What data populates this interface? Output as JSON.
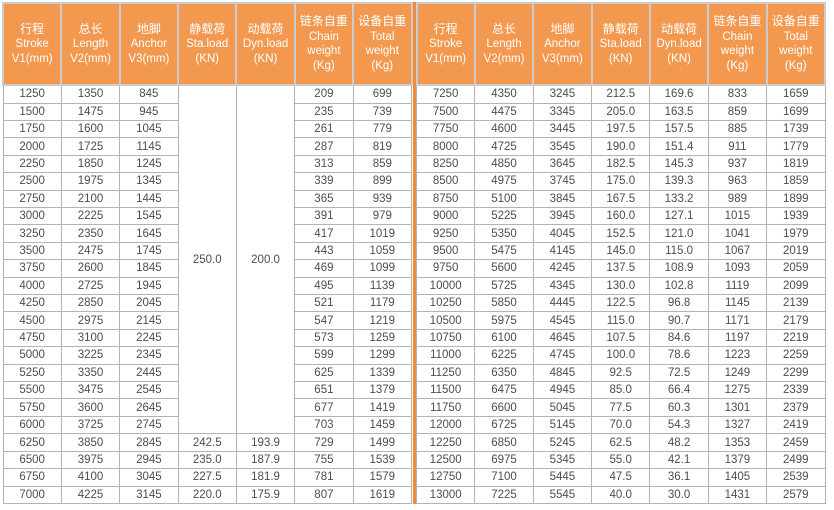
{
  "colors": {
    "header_bg": "#F2984F",
    "header_text": "#FFFFFF",
    "header_border": "#CCCCCC",
    "cell_border": "#B3B3B3",
    "cell_text": "#4D4D4D",
    "divider": "#EF8C3C",
    "page_bg": "#FFFFFF"
  },
  "columns": [
    {
      "id": "stroke",
      "lines": [
        "行程",
        "Stroke",
        "V1(mm)"
      ]
    },
    {
      "id": "length",
      "lines": [
        "总长",
        "Length",
        "V2(mm)"
      ]
    },
    {
      "id": "anchor",
      "lines": [
        "地脚",
        "Anchor",
        "V3(mm)"
      ]
    },
    {
      "id": "sta-load",
      "lines": [
        "静载荷",
        "Sta.load",
        "(KN)"
      ]
    },
    {
      "id": "dyn-load",
      "lines": [
        "动载荷",
        "Dyn.load",
        "(KN)"
      ]
    },
    {
      "id": "chain-weight",
      "lines": [
        "链条自重",
        "Chain",
        "weight",
        "(Kg)"
      ]
    },
    {
      "id": "total-weight",
      "lines": [
        "设备自重",
        "Total",
        "weight",
        "(Kg)"
      ]
    }
  ],
  "left": {
    "merged_sta_load": "250.0",
    "merged_dyn_load": "200.0",
    "merged_row_span": 20,
    "rows": [
      [
        "1250",
        "1350",
        "845",
        null,
        null,
        "209",
        "699"
      ],
      [
        "1500",
        "1475",
        "945",
        null,
        null,
        "235",
        "739"
      ],
      [
        "1750",
        "1600",
        "1045",
        null,
        null,
        "261",
        "779"
      ],
      [
        "2000",
        "1725",
        "1145",
        null,
        null,
        "287",
        "819"
      ],
      [
        "2250",
        "1850",
        "1245",
        null,
        null,
        "313",
        "859"
      ],
      [
        "2500",
        "1975",
        "1345",
        null,
        null,
        "339",
        "899"
      ],
      [
        "2750",
        "2100",
        "1445",
        null,
        null,
        "365",
        "939"
      ],
      [
        "3000",
        "2225",
        "1545",
        null,
        null,
        "391",
        "979"
      ],
      [
        "3250",
        "2350",
        "1645",
        null,
        null,
        "417",
        "1019"
      ],
      [
        "3500",
        "2475",
        "1745",
        null,
        null,
        "443",
        "1059"
      ],
      [
        "3750",
        "2600",
        "1845",
        null,
        null,
        "469",
        "1099"
      ],
      [
        "4000",
        "2725",
        "1945",
        null,
        null,
        "495",
        "1139"
      ],
      [
        "4250",
        "2850",
        "2045",
        null,
        null,
        "521",
        "1179"
      ],
      [
        "4500",
        "2975",
        "2145",
        null,
        null,
        "547",
        "1219"
      ],
      [
        "4750",
        "3100",
        "2245",
        null,
        null,
        "573",
        "1259"
      ],
      [
        "5000",
        "3225",
        "2345",
        null,
        null,
        "599",
        "1299"
      ],
      [
        "5250",
        "3350",
        "2445",
        null,
        null,
        "625",
        "1339"
      ],
      [
        "5500",
        "3475",
        "2545",
        null,
        null,
        "651",
        "1379"
      ],
      [
        "5750",
        "3600",
        "2645",
        null,
        null,
        "677",
        "1419"
      ],
      [
        "6000",
        "3725",
        "2745",
        null,
        null,
        "703",
        "1459"
      ],
      [
        "6250",
        "3850",
        "2845",
        "242.5",
        "193.9",
        "729",
        "1499"
      ],
      [
        "6500",
        "3975",
        "2945",
        "235.0",
        "187.9",
        "755",
        "1539"
      ],
      [
        "6750",
        "4100",
        "3045",
        "227.5",
        "181.9",
        "781",
        "1579"
      ],
      [
        "7000",
        "4225",
        "3145",
        "220.0",
        "175.9",
        "807",
        "1619"
      ]
    ]
  },
  "right": {
    "rows": [
      [
        "7250",
        "4350",
        "3245",
        "212.5",
        "169.6",
        "833",
        "1659"
      ],
      [
        "7500",
        "4475",
        "3345",
        "205.0",
        "163.5",
        "859",
        "1699"
      ],
      [
        "7750",
        "4600",
        "3445",
        "197.5",
        "157.5",
        "885",
        "1739"
      ],
      [
        "8000",
        "4725",
        "3545",
        "190.0",
        "151.4",
        "911",
        "1779"
      ],
      [
        "8250",
        "4850",
        "3645",
        "182.5",
        "145.3",
        "937",
        "1819"
      ],
      [
        "8500",
        "4975",
        "3745",
        "175.0",
        "139.3",
        "963",
        "1859"
      ],
      [
        "8750",
        "5100",
        "3845",
        "167.5",
        "133.2",
        "989",
        "1899"
      ],
      [
        "9000",
        "5225",
        "3945",
        "160.0",
        "127.1",
        "1015",
        "1939"
      ],
      [
        "9250",
        "5350",
        "4045",
        "152.5",
        "121.0",
        "1041",
        "1979"
      ],
      [
        "9500",
        "5475",
        "4145",
        "145.0",
        "115.0",
        "1067",
        "2019"
      ],
      [
        "9750",
        "5600",
        "4245",
        "137.5",
        "108.9",
        "1093",
        "2059"
      ],
      [
        "10000",
        "5725",
        "4345",
        "130.0",
        "102.8",
        "1119",
        "2099"
      ],
      [
        "10250",
        "5850",
        "4445",
        "122.5",
        "96.8",
        "1145",
        "2139"
      ],
      [
        "10500",
        "5975",
        "4545",
        "115.0",
        "90.7",
        "1171",
        "2179"
      ],
      [
        "10750",
        "6100",
        "4645",
        "107.5",
        "84.6",
        "1197",
        "2219"
      ],
      [
        "11000",
        "6225",
        "4745",
        "100.0",
        "78.6",
        "1223",
        "2259"
      ],
      [
        "11250",
        "6350",
        "4845",
        "92.5",
        "72.5",
        "1249",
        "2299"
      ],
      [
        "11500",
        "6475",
        "4945",
        "85.0",
        "66.4",
        "1275",
        "2339"
      ],
      [
        "11750",
        "6600",
        "5045",
        "77.5",
        "60.3",
        "1301",
        "2379"
      ],
      [
        "12000",
        "6725",
        "5145",
        "70.0",
        "54.3",
        "1327",
        "2419"
      ],
      [
        "12250",
        "6850",
        "5245",
        "62.5",
        "48.2",
        "1353",
        "2459"
      ],
      [
        "12500",
        "6975",
        "5345",
        "55.0",
        "42.1",
        "1379",
        "2499"
      ],
      [
        "12750",
        "7100",
        "5445",
        "47.5",
        "36.1",
        "1405",
        "2539"
      ],
      [
        "13000",
        "7225",
        "5545",
        "40.0",
        "30.0",
        "1431",
        "2579"
      ]
    ]
  }
}
